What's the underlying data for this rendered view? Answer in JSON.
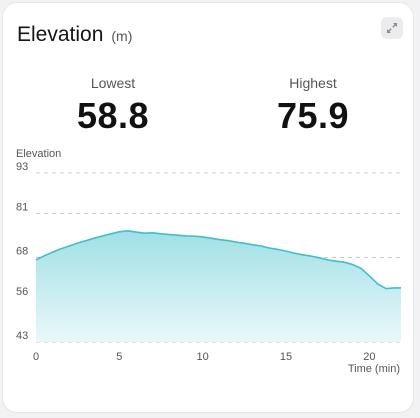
{
  "widget": {
    "title": "Elevation",
    "unit": "(m)",
    "expand_icon": "expand-diagonal-icon"
  },
  "stats": {
    "lowest_label": "Lowest",
    "lowest_value": "58.8",
    "highest_label": "Highest",
    "highest_value": "75.9"
  },
  "colors": {
    "line": "#3fbfc9",
    "fill_top": "#9fe0e6",
    "fill_bottom": "#eaf8fa",
    "grid": "#c9c9cc"
  },
  "chart_data": {
    "type": "area",
    "ylabel": "Elevation",
    "xlabel": "Time (min)",
    "xlim": [
      0,
      21.9
    ],
    "ylim": [
      43,
      93
    ],
    "y_ticks": [
      93,
      81,
      68,
      56,
      43
    ],
    "x_ticks": [
      0,
      5,
      10,
      15,
      20
    ],
    "grid": true,
    "x": [
      0,
      0.5,
      1,
      1.5,
      2,
      2.5,
      3,
      3.5,
      4,
      4.5,
      5,
      5.5,
      6,
      6.5,
      7,
      7.5,
      8,
      8.5,
      9,
      9.5,
      10,
      10.5,
      11,
      11.5,
      12,
      12.5,
      13,
      13.5,
      14,
      14.5,
      15,
      15.5,
      16,
      16.5,
      17,
      17.5,
      18,
      18.5,
      19,
      19.5,
      20,
      20.5,
      21,
      21.5,
      21.9
    ],
    "y": [
      67.3,
      68.5,
      69.6,
      70.6,
      71.4,
      72.3,
      73.0,
      73.7,
      74.4,
      75.0,
      75.6,
      75.9,
      75.5,
      75.2,
      75.3,
      75.0,
      74.8,
      74.6,
      74.4,
      74.3,
      74.1,
      73.7,
      73.3,
      73.0,
      72.6,
      72.2,
      71.8,
      71.4,
      70.8,
      70.4,
      69.9,
      69.3,
      68.8,
      68.4,
      67.9,
      67.3,
      66.9,
      66.6,
      65.9,
      64.8,
      62.6,
      60.2,
      58.8,
      59.0,
      59.0
    ]
  }
}
